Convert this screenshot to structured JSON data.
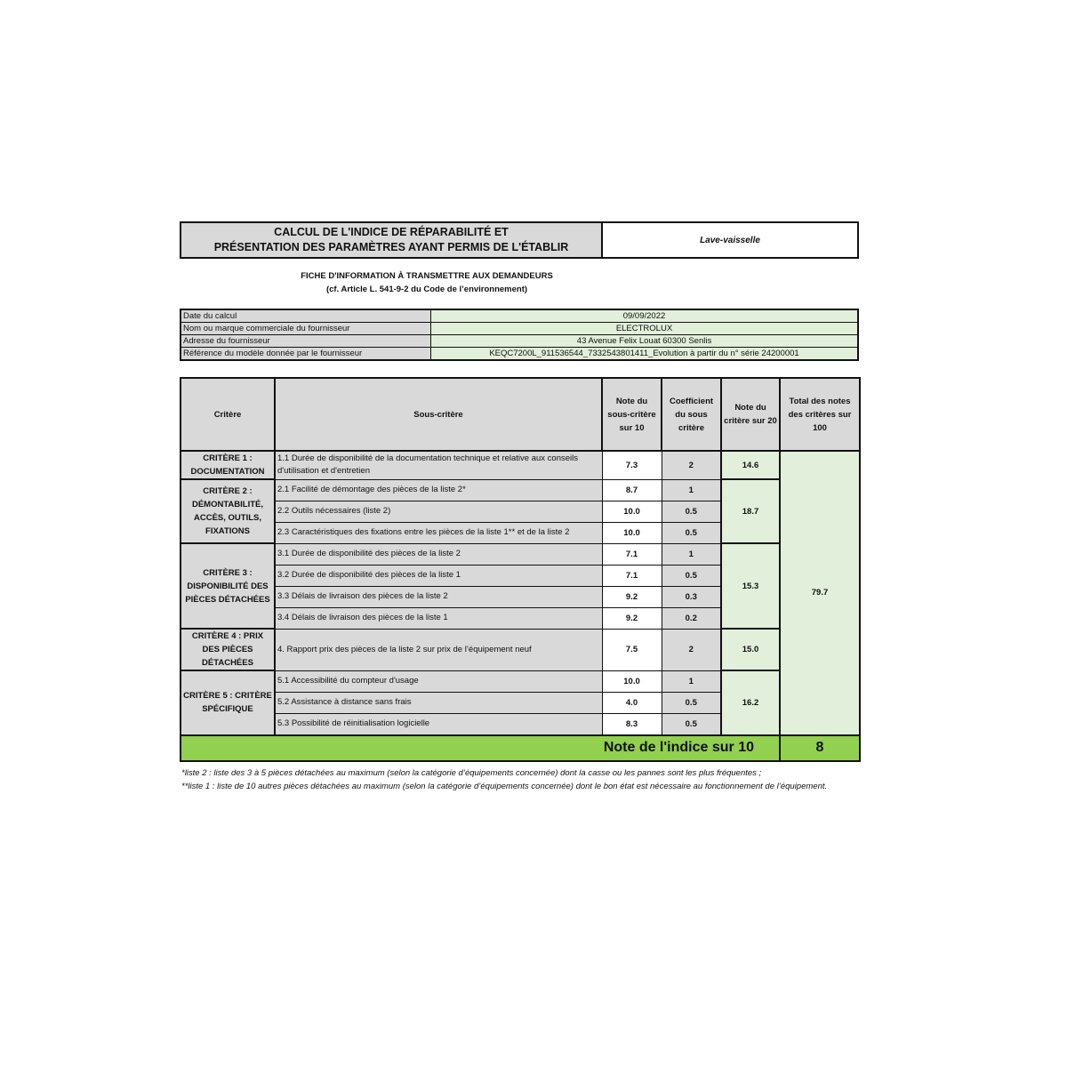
{
  "header": {
    "title_line1": "CALCUL DE L'INDICE DE RÉPARABILITÉ ET",
    "title_line2": "PRÉSENTATION DES PARAMÈTRES AYANT PERMIS DE L'ÉTABLIR",
    "product_category": "Lave-vaisselle"
  },
  "fiche": {
    "line1": "FICHE D'INFORMATION À TRANSMETTRE AUX DEMANDEURS",
    "line2": "(cf. Article L. 541-9-2 du Code de l’environnement)"
  },
  "info": [
    {
      "label": "Date du calcul",
      "value": "09/09/2022"
    },
    {
      "label": "Nom ou marque commerciale du fournisseur",
      "value": "ELECTROLUX"
    },
    {
      "label": "Adresse du fournisseur",
      "value": "43  Avenue  Felix Louat  60300 Senlis"
    },
    {
      "label": "Référence du modèle donnée par le fournisseur",
      "value": "KEQC7200L_911536544_7332543801411_Evolution à partir du n° série 24200001"
    }
  ],
  "table": {
    "headers": [
      "Critère",
      "Sous-critère",
      "Note du sous-critère sur 10",
      "Coefficient du sous critère",
      "Note du critère sur 20",
      "Total des notes des critères sur 100"
    ],
    "criteria": [
      {
        "name": "CRITÈRE 1 : DOCUMENTATION",
        "score": "14.6",
        "subs": [
          {
            "label": "1.1 Durée de disponibilité de la documentation technique et relative aux conseils d'utilisation et d'entretien",
            "note": "7.3",
            "coef": "2"
          }
        ]
      },
      {
        "name": "CRITÈRE 2 : DÉMONTABILITÉ, ACCÈS, OUTILS, FIXATIONS",
        "score": "18.7",
        "subs": [
          {
            "label": "2.1 Facilité de démontage des pièces de la liste 2*",
            "note": "8.7",
            "coef": "1"
          },
          {
            "label": "2.2 Outils nécessaires (liste 2)",
            "note": "10.0",
            "coef": "0.5"
          },
          {
            "label": "2.3 Caractéristiques des fixations entre les pièces de la liste 1** et de la liste 2",
            "note": "10.0",
            "coef": "0.5"
          }
        ]
      },
      {
        "name": "CRITÈRE 3 : DISPONIBILITÉ DES PIÈCES DÉTACHÉES",
        "score": "15.3",
        "subs": [
          {
            "label": "3.1 Durée de disponibilité des pièces de la liste 2",
            "note": "7.1",
            "coef": "1"
          },
          {
            "label": "3.2 Durée de disponibilité des pièces de la liste 1",
            "note": "7.1",
            "coef": "0.5"
          },
          {
            "label": "3.3 Délais de livraison des pièces de la liste 2",
            "note": "9.2",
            "coef": "0.3"
          },
          {
            "label": "3.4 Délais de livraison des pièces de la liste 1",
            "note": "9.2",
            "coef": "0.2"
          }
        ]
      },
      {
        "name": "CRITÈRE 4 : PRIX DES PIÈCES DÉTACHÉES",
        "score": "15.0",
        "subs": [
          {
            "label": "4. Rapport prix des pièces de la liste 2 sur prix de l’équipement neuf",
            "note": "7.5",
            "coef": "2"
          }
        ]
      },
      {
        "name": "CRITÈRE 5 : CRITÈRE SPÉCIFIQUE",
        "score": "16.2",
        "subs": [
          {
            "label": "5.1 Accessibilité du compteur d'usage",
            "note": "10.0",
            "coef": "1"
          },
          {
            "label": "5.2 Assistance à distance sans frais",
            "note": "4.0",
            "coef": "0.5"
          },
          {
            "label": "5.3 Possibilité de réinitialisation logicielle",
            "note": "8.3",
            "coef": "0.5"
          }
        ]
      }
    ],
    "total": "79.7",
    "final_label": "Note de l'indice sur 10",
    "final_value": "8"
  },
  "notes": [
    "*liste 2 : liste des 3 à 5 pièces détachées au maximum (selon la catégorie d’équipements concernée) dont la casse ou les pannes sont les plus fréquentes ;",
    "**liste 1 : liste de 10 autres pièces détachées au maximum (selon la catégorie d’équipements concernée) dont le bon état est nécessaire au fonctionnement de l’équipement."
  ],
  "colors": {
    "gray": "#d9d9d9",
    "light_green": "#e2efda",
    "green": "#92d050"
  }
}
